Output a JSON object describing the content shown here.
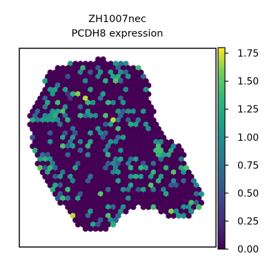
{
  "chart_data": {
    "type": "scatter",
    "title_lines": [
      "ZH1007nec",
      "PCDH8 expression"
    ],
    "xlabel": "",
    "ylabel": "",
    "colorbar": {
      "range": [
        0.0,
        1.8
      ],
      "ticks": [
        0.0,
        0.25,
        0.5,
        0.75,
        1.0,
        1.25,
        1.5,
        1.75
      ],
      "tick_labels": [
        "0.00",
        "0.25",
        "0.50",
        "0.75",
        "1.00",
        "1.25",
        "1.50",
        "1.75"
      ],
      "colormap": "viridis"
    },
    "points_note_values": "spatial spots colored by PCDH8 expression (0.00–1.80)",
    "grid": false,
    "legend": "colorbar-right"
  },
  "colors": {
    "background_spot": "#440154",
    "axes": "#000000"
  }
}
